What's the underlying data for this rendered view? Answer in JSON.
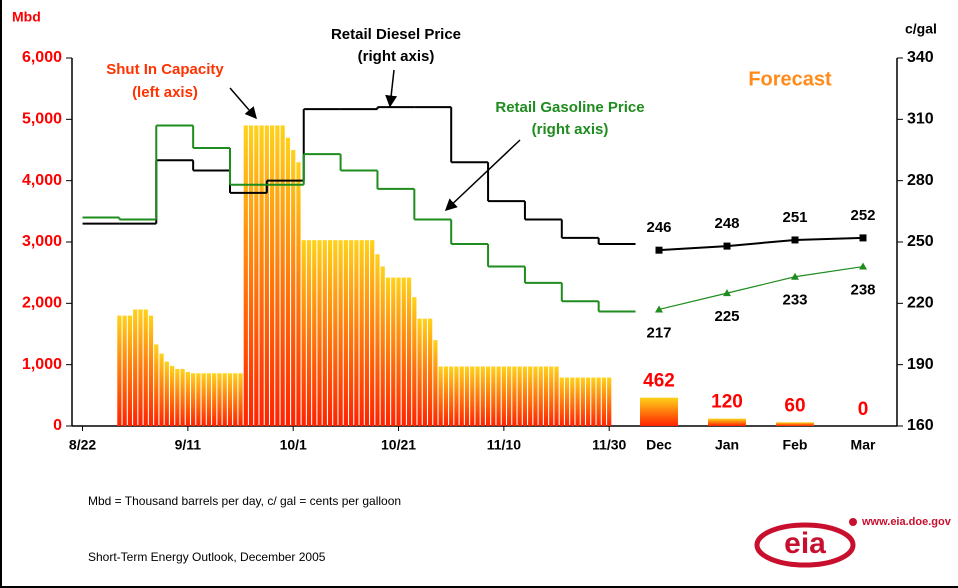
{
  "chart_data": {
    "type": "combo",
    "y_label": "Mbd",
    "y2_label": "c/gal",
    "forecast_label": "Forecast",
    "ylim": [
      0,
      6000
    ],
    "yticks": [
      0,
      {
        "value": 1000,
        "label": "1,000"
      },
      {
        "value": 2000,
        "label": "2,000"
      },
      {
        "value": 3000,
        "label": "3,000"
      },
      {
        "value": 4000,
        "label": "4,000"
      },
      {
        "value": 5000,
        "label": "5,000"
      },
      {
        "value": 6000,
        "label": "6,000"
      }
    ],
    "y2lim": [
      160,
      340
    ],
    "y2ticks": [
      160,
      190,
      220,
      250,
      280,
      310,
      340
    ],
    "xlim": [
      "8/20",
      "12/3"
    ],
    "xticks": [
      "8/22",
      "9/11",
      "10/1",
      "10/21",
      "11/10",
      "11/30"
    ],
    "forecast_categories": [
      "Dec",
      "Jan",
      "Feb",
      "Mar"
    ],
    "series": [
      {
        "name": "Shut In Capacity",
        "axis_note": "(left axis)",
        "type": "bar",
        "label_color": "#ff3300",
        "gradient": [
          "#ffd21a",
          "#ff2200"
        ],
        "x": [
          "8/29",
          "8/30",
          "8/31",
          "9/1",
          "9/2",
          "9/3",
          "9/4",
          "9/5",
          "9/6",
          "9/7",
          "9/8",
          "9/9",
          "9/10",
          "9/11",
          "9/12",
          "9/13",
          "9/14",
          "9/15",
          "9/16",
          "9/17",
          "9/18",
          "9/19",
          "9/20",
          "9/21",
          "9/22",
          "9/23",
          "9/24",
          "9/25",
          "9/26",
          "9/27",
          "9/28",
          "9/29",
          "9/30",
          "10/1",
          "10/2",
          "10/3",
          "10/4",
          "10/5",
          "10/6",
          "10/7",
          "10/8",
          "10/9",
          "10/10",
          "10/11",
          "10/12",
          "10/13",
          "10/14",
          "10/15",
          "10/16",
          "10/17",
          "10/18",
          "10/19",
          "10/20",
          "10/21",
          "10/22",
          "10/23",
          "10/24",
          "10/25",
          "10/26",
          "10/27",
          "10/28",
          "10/29",
          "10/30",
          "10/31",
          "11/1",
          "11/2",
          "11/3",
          "11/4",
          "11/5",
          "11/6",
          "11/7",
          "11/8",
          "11/9",
          "11/10",
          "11/11",
          "11/12",
          "11/13",
          "11/14",
          "11/15",
          "11/16",
          "11/17",
          "11/18",
          "11/19",
          "11/20",
          "11/21",
          "11/22",
          "11/23",
          "11/24",
          "11/25",
          "11/26",
          "11/27",
          "11/28",
          "11/29",
          "11/30"
        ],
        "values": [
          1800,
          1800,
          1800,
          1900,
          1900,
          1900,
          1800,
          1330,
          1180,
          1050,
          980,
          930,
          930,
          880,
          860,
          860,
          860,
          860,
          860,
          860,
          860,
          860,
          860,
          860,
          4900,
          4900,
          4900,
          4900,
          4900,
          4900,
          4900,
          4900,
          4700,
          4500,
          4300,
          3030,
          3030,
          3030,
          3030,
          3030,
          3030,
          3030,
          3030,
          3030,
          3030,
          3030,
          3030,
          3030,
          3030,
          2800,
          2600,
          2420,
          2420,
          2420,
          2420,
          2420,
          2100,
          1750,
          1750,
          1750,
          1400,
          970,
          970,
          970,
          970,
          970,
          970,
          970,
          970,
          970,
          970,
          970,
          970,
          970,
          970,
          970,
          970,
          970,
          970,
          970,
          970,
          970,
          970,
          970,
          790,
          790,
          790,
          790,
          790,
          790,
          790,
          790,
          790,
          790
        ],
        "forecast": [
          462,
          120,
          60,
          0
        ]
      },
      {
        "name": "Retail Diesel Price",
        "axis_note": "(right axis)",
        "type": "step",
        "axis": "y2",
        "color": "#000000",
        "x": [
          "8/22",
          "8/29",
          "9/5",
          "9/12",
          "9/19",
          "9/26",
          "10/3",
          "10/10",
          "10/17",
          "10/24",
          "10/31",
          "11/7",
          "11/14",
          "11/21",
          "11/28"
        ],
        "values": [
          259,
          259,
          290,
          285,
          274,
          280,
          315,
          315,
          316,
          316,
          289,
          270,
          261,
          252,
          249
        ],
        "forecast": [
          246,
          248,
          251,
          252
        ]
      },
      {
        "name": "Retail Gasoline Price",
        "axis_note": "(right axis)",
        "type": "step",
        "axis": "y2",
        "color": "#1e8c1e",
        "x": [
          "8/22",
          "8/29",
          "9/5",
          "9/12",
          "9/19",
          "9/26",
          "10/3",
          "10/10",
          "10/17",
          "10/24",
          "10/31",
          "11/7",
          "11/14",
          "11/21",
          "11/28"
        ],
        "values": [
          262,
          261,
          307,
          296,
          278,
          278,
          293,
          285,
          276,
          261,
          249,
          238,
          230,
          221,
          216
        ],
        "forecast": [
          217,
          225,
          233,
          238
        ]
      }
    ]
  },
  "footer": {
    "note": "Mbd = Thousand barrels per day, c/ gal = cents per galloon",
    "source": "Short-Term Energy Outlook, December 2005",
    "url": "www.eia.doe.gov",
    "logo": "eia"
  }
}
